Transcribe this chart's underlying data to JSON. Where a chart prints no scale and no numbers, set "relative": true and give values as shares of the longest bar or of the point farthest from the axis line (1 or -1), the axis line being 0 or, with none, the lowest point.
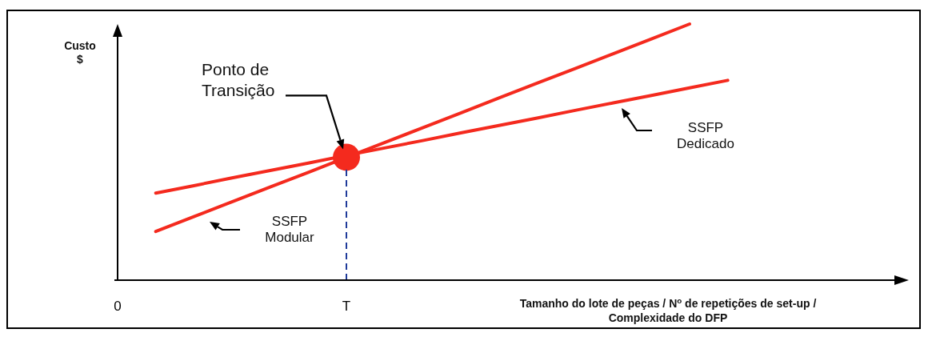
{
  "chart_data": {
    "type": "line",
    "relative": true,
    "ylabel": "Custo\n$",
    "xlabel": "Tamanho do lote de peças /  N$^{o}$ de repetições de set-up /\nComplexidade do DFP",
    "categories": [
      "0",
      null,
      null,
      null,
      null,
      null,
      "T",
      null,
      null,
      null,
      null,
      null,
      null,
      null,
      null,
      null,
      null
    ],
    "series": [
      {
        "name": "SSFP\nModular",
        "color": "#f42a1e",
        "values": [
          null,
          0.19,
          0.248,
          0.306,
          0.364,
          0.421,
          0.479,
          0.537,
          0.595,
          0.653,
          0.711,
          0.769,
          0.826,
          0.884,
          0.942,
          1.0,
          null
        ]
      },
      {
        "name": "SSFP\nDedicado",
        "color": "#f42a1e",
        "values": [
          null,
          0.34,
          0.369,
          0.399,
          0.428,
          0.457,
          0.487,
          0.516,
          0.545,
          0.575,
          0.604,
          0.633,
          0.663,
          0.692,
          0.721,
          0.751,
          0.78
        ]
      },
      {
        "type": "scatter",
        "color": "#f42a1e",
        "marker": "circle",
        "values": [
          null,
          null,
          null,
          null,
          null,
          null,
          0.48,
          null,
          null,
          null,
          null,
          null,
          null,
          null,
          null,
          null,
          null
        ]
      }
    ],
    "ref_lines": [
      {
        "axis": "x",
        "value": "T",
        "color": "#1f3a9a",
        "line_style": "dashed"
      }
    ],
    "annotations": [
      "Ponto de\nTransição"
    ]
  }
}
